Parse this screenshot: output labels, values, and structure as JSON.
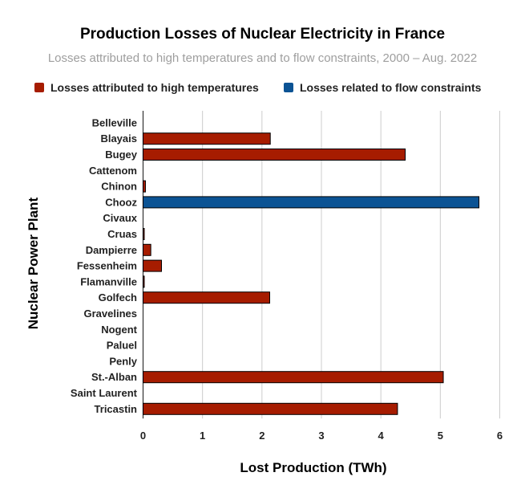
{
  "chart_data": {
    "type": "bar",
    "orientation": "horizontal",
    "title": "Production Losses of Nuclear Electricity in France",
    "subtitle": "Losses attributed to high temperatures and to flow constraints, 2000 – Aug. 2022",
    "xlabel": "Lost Production (TWh)",
    "ylabel": "Nuclear Power Plant",
    "xlim": [
      0,
      6
    ],
    "xticks": [
      "0",
      "1",
      "2",
      "3",
      "4",
      "5",
      "6"
    ],
    "grid": true,
    "legend_position": "top",
    "categories": [
      "Belleville",
      "Blayais",
      "Bugey",
      "Cattenom",
      "Chinon",
      "Chooz",
      "Civaux",
      "Cruas",
      "Dampierre",
      "Fessenheim",
      "Flamanville",
      "Golfech",
      "Gravelines",
      "Nogent",
      "Paluel",
      "Penly",
      "St.-Alban",
      "Saint Laurent",
      "Tricastin"
    ],
    "series": [
      {
        "name": "Losses attributed to high temperatures",
        "color": "#a61c00",
        "values": [
          0,
          2.14,
          4.41,
          0,
          0.04,
          0,
          0,
          0.02,
          0.13,
          0.31,
          0.02,
          2.13,
          0,
          0,
          0,
          0,
          5.05,
          0,
          4.28
        ]
      },
      {
        "name": "Losses related to flow constraints",
        "color": "#0b5394",
        "values": [
          0,
          0,
          0,
          0,
          0,
          5.65,
          0,
          0,
          0,
          0,
          0,
          0,
          0,
          0,
          0,
          0,
          0,
          0,
          0
        ]
      }
    ]
  }
}
